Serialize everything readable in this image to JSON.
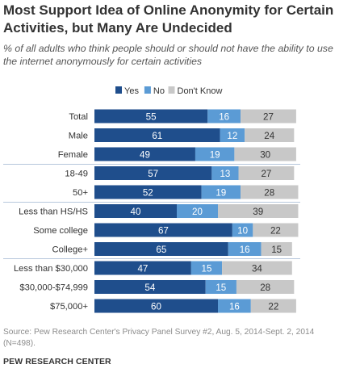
{
  "header": {
    "title": "Most Support Idea of Online Anonymity for Certain Activities, but Many Are Undecided",
    "subtitle": "% of all adults who think people should or should not have the ability to use the internet anonymously for certain activities"
  },
  "footer": {
    "source": "Source: Pew Research Center's Privacy Panel Survey #2, Aug. 5, 2014-Sept. 2, 2014 (N=498).",
    "credit": "PEW RESEARCH CENTER"
  },
  "colors": {
    "yes": "#1f4e8c",
    "no": "#5b9bd5",
    "dont_know": "#c8c8c8",
    "yes_text": "#ffffff",
    "no_text": "#ffffff",
    "dont_know_text": "#333333",
    "divider": "#6d8fb8"
  },
  "chart_data": {
    "type": "bar",
    "orientation": "horizontal",
    "stacked": true,
    "legend_position": "top",
    "grid": false,
    "categories": [
      "Total",
      "Male",
      "Female",
      "18-49",
      "50+",
      "Less than HS/HS",
      "Some college",
      "College+",
      "Less than $30,000",
      "$30,000-$74,999",
      "$75,000+"
    ],
    "series": [
      {
        "name": "Yes",
        "values": [
          55,
          61,
          49,
          57,
          52,
          40,
          67,
          65,
          47,
          54,
          60
        ]
      },
      {
        "name": "No",
        "values": [
          16,
          12,
          19,
          13,
          19,
          20,
          10,
          16,
          15,
          15,
          16
        ]
      },
      {
        "name": "Don't Know",
        "values": [
          27,
          24,
          30,
          27,
          28,
          39,
          22,
          15,
          34,
          28,
          22
        ]
      }
    ],
    "xlim": [
      0,
      100
    ]
  }
}
